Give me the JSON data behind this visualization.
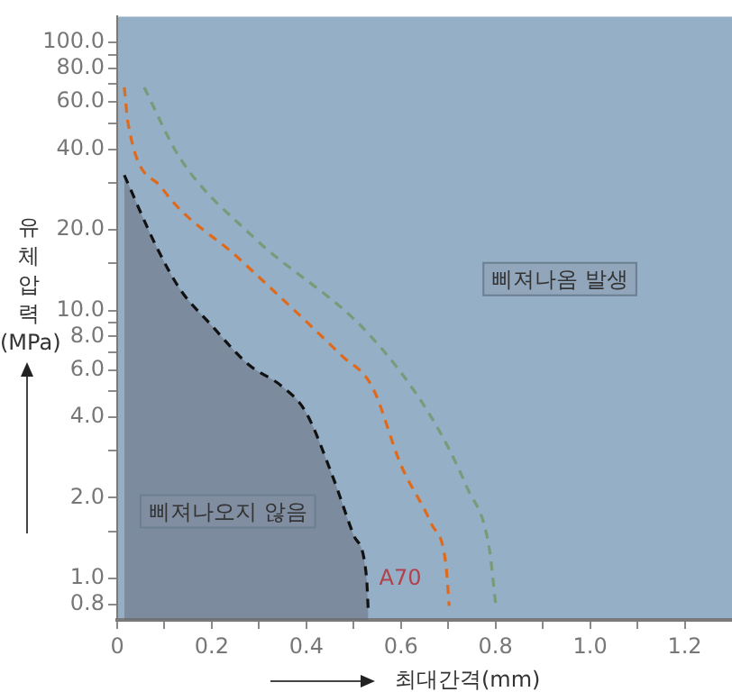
{
  "chart_data": {
    "type": "line",
    "xlabel": "최대간격(mm)",
    "ylabel": "유체압력(MPa)",
    "log": "y",
    "grid": false,
    "legend": false,
    "marker": "none",
    "line_style": "dashed",
    "xlim": [
      0,
      1.3
    ],
    "xticks": [
      0,
      {
        "value": 0.1,
        "label": null
      },
      0.2,
      {
        "value": 0.3,
        "label": null
      },
      0.4,
      {
        "value": 0.5,
        "label": null
      },
      0.6,
      {
        "value": 0.7,
        "label": null
      },
      0.8,
      {
        "value": 0.9,
        "label": null
      },
      {
        "value": 1,
        "label": "1.0"
      },
      {
        "value": 1.1,
        "label": null
      },
      1.2
    ],
    "ylim": [
      0.7,
      125
    ],
    "yticks": [
      {
        "value": 0.8,
        "label": "0.8"
      },
      {
        "value": 1,
        "label": "1.0"
      },
      {
        "value": 1.5,
        "label": null
      },
      {
        "value": 2,
        "label": "2.0"
      },
      {
        "value": 3,
        "label": null
      },
      {
        "value": 4,
        "label": "4.0"
      },
      {
        "value": 5,
        "label": null
      },
      {
        "value": 6,
        "label": "6.0"
      },
      {
        "value": 7,
        "label": null
      },
      {
        "value": 8,
        "label": "8.0"
      },
      {
        "value": 9,
        "label": null
      },
      {
        "value": 10,
        "label": "10.0"
      },
      {
        "value": 15,
        "label": null
      },
      {
        "value": 20,
        "label": "20.0"
      },
      {
        "value": 30,
        "label": null
      },
      {
        "value": 40,
        "label": "40.0"
      },
      {
        "value": 50,
        "label": null
      },
      {
        "value": 60,
        "label": "60.0"
      },
      {
        "value": 70,
        "label": null
      },
      {
        "value": 80,
        "label": "80.0"
      },
      {
        "value": 90,
        "label": null
      },
      {
        "value": 100,
        "label": "100.0"
      }
    ],
    "series": [
      {
        "name": "A70",
        "type": "area",
        "color": "#111111",
        "x": [
          0.015,
          0.083,
          0.133,
          0.197,
          0.277,
          0.349,
          0.398,
          0.455,
          0.5,
          0.527,
          0.531
        ],
        "values": [
          32,
          17.3,
          12,
          8.9,
          6.3,
          5.2,
          4.2,
          2.42,
          1.45,
          1.02,
          0.75
        ]
      },
      {
        "color": "#e06a1b",
        "x": [
          0.015,
          0.023,
          0.095,
          0.258,
          0.474,
          0.539,
          0.6,
          0.664,
          0.695,
          0.702
        ],
        "values": [
          68,
          50,
          28.6,
          15.6,
          6.8,
          5.2,
          2.65,
          1.6,
          1.13,
          0.79
        ]
      },
      {
        "color": "#7a9a7a",
        "x": [
          0.057,
          0.133,
          0.285,
          0.531,
          0.664,
          0.74,
          0.786,
          0.8
        ],
        "values": [
          68,
          37,
          19,
          8.2,
          4,
          2.18,
          1.32,
          0.81
        ]
      }
    ],
    "annotations": [
      "삐져나옴 발생",
      "삐져나오지 않음"
    ]
  }
}
